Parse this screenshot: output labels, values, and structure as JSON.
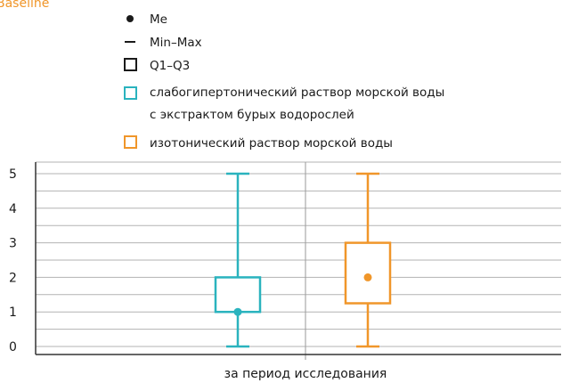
{
  "chart_data": {
    "type": "box",
    "title_fragment": "Baseline",
    "x_tick_labels": [
      "за период исследования"
    ],
    "ylim": [
      0,
      5
    ],
    "y_ticks": [
      0,
      1,
      2,
      3,
      4,
      5
    ],
    "grid": true,
    "legend_position": "top",
    "legend_items": [
      {
        "symbol": "dot",
        "lines": [
          "Me"
        ]
      },
      {
        "symbol": "line",
        "lines": [
          "Min–Max"
        ]
      },
      {
        "symbol": "box",
        "lines": [
          "Q1–Q3"
        ]
      }
    ],
    "series": [
      {
        "name": "слабогипертонический раствор морской воды с экстрактом бурых водорослей",
        "legend_lines": [
          "слабогипертонический раствор морской воды",
          "с экстрактом бурых водорослей"
        ],
        "color": "#2ab3be",
        "min": 0,
        "q1": 1,
        "median": 1,
        "q3": 2,
        "max": 5
      },
      {
        "name": "изотонический раствор морской воды",
        "legend_lines": [
          "изотонический раствор морской воды"
        ],
        "color": "#f0962a",
        "min": 0,
        "q1": 1.25,
        "median": 2,
        "q3": 3,
        "max": 5
      }
    ]
  }
}
